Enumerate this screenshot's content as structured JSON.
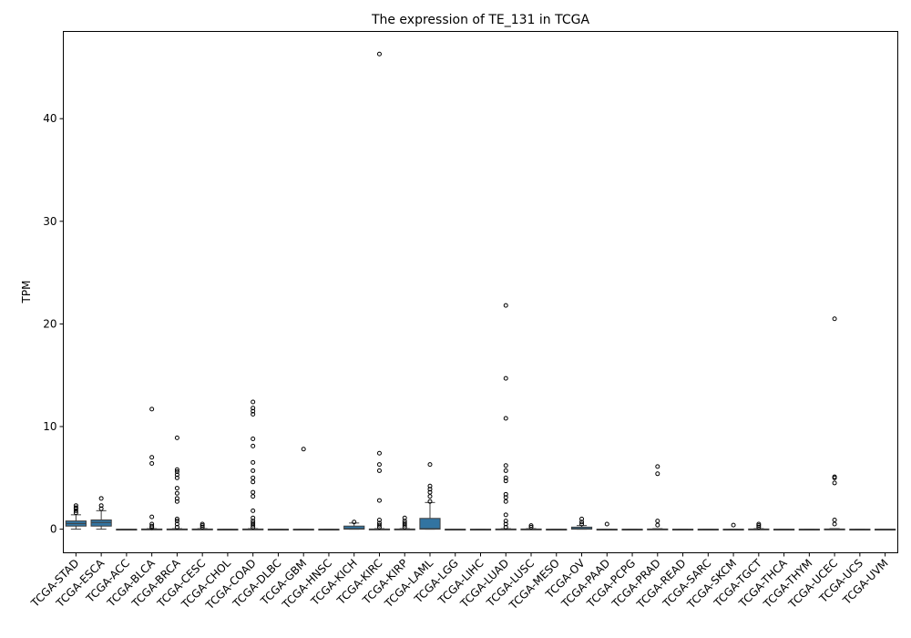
{
  "chart_data": {
    "type": "box",
    "title": "The expression of TE_131 in TCGA",
    "xlabel": "",
    "ylabel": "TPM",
    "ylim": [
      -2.3,
      48.5
    ],
    "yticks": [
      0,
      10,
      20,
      30,
      40
    ],
    "box_color": "#3274a1",
    "grid": false,
    "categories": [
      "TCGA-STAD",
      "TCGA-ESCA",
      "TCGA-ACC",
      "TCGA-BLCA",
      "TCGA-BRCA",
      "TCGA-CESC",
      "TCGA-CHOL",
      "TCGA-COAD",
      "TCGA-DLBC",
      "TCGA-GBM",
      "TCGA-HNSC",
      "TCGA-KICH",
      "TCGA-KIRC",
      "TCGA-KIRP",
      "TCGA-LAML",
      "TCGA-LGG",
      "TCGA-LIHC",
      "TCGA-LUAD",
      "TCGA-LUSC",
      "TCGA-MESO",
      "TCGA-OV",
      "TCGA-PAAD",
      "TCGA-PCPG",
      "TCGA-PRAD",
      "TCGA-READ",
      "TCGA-SARC",
      "TCGA-SKCM",
      "TCGA-TGCT",
      "TCGA-THCA",
      "TCGA-THYM",
      "TCGA-UCEC",
      "TCGA-UCS",
      "TCGA-UVM"
    ],
    "boxes": [
      {
        "whislo": 0,
        "q1": 0.3,
        "med": 0.55,
        "q3": 0.8,
        "whishi": 1.4,
        "fliers": [
          1.6,
          1.8,
          2.0,
          2.1,
          2.3
        ]
      },
      {
        "whislo": 0,
        "q1": 0.3,
        "med": 0.65,
        "q3": 0.9,
        "whishi": 1.8,
        "fliers": [
          2.0,
          2.3,
          3.0
        ]
      },
      {
        "whislo": 0,
        "q1": 0,
        "med": 0,
        "q3": 0,
        "whishi": 0,
        "fliers": []
      },
      {
        "whislo": 0,
        "q1": 0,
        "med": 0,
        "q3": 0.02,
        "whishi": 0.05,
        "fliers": [
          0.15,
          0.3,
          0.5,
          1.2,
          6.4,
          7.0,
          11.7
        ]
      },
      {
        "whislo": 0,
        "q1": 0,
        "med": 0,
        "q3": 0.02,
        "whishi": 0.05,
        "fliers": [
          0.2,
          0.5,
          0.8,
          1.0,
          2.7,
          3.0,
          3.5,
          4.0,
          5.0,
          5.3,
          5.6,
          5.8,
          8.9
        ]
      },
      {
        "whislo": 0,
        "q1": 0,
        "med": 0,
        "q3": 0.02,
        "whishi": 0.05,
        "fliers": [
          0.2,
          0.35,
          0.5
        ]
      },
      {
        "whislo": 0,
        "q1": 0,
        "med": 0,
        "q3": 0,
        "whishi": 0,
        "fliers": []
      },
      {
        "whislo": 0,
        "q1": 0,
        "med": 0,
        "q3": 0.02,
        "whishi": 0.05,
        "fliers": [
          0.2,
          0.4,
          0.6,
          0.8,
          1.1,
          1.8,
          3.2,
          3.6,
          4.6,
          5.0,
          5.7,
          6.5,
          8.1,
          8.8,
          11.2,
          11.5,
          11.8,
          12.4
        ]
      },
      {
        "whislo": 0,
        "q1": 0,
        "med": 0,
        "q3": 0,
        "whishi": 0,
        "fliers": []
      },
      {
        "whislo": 0,
        "q1": 0,
        "med": 0,
        "q3": 0,
        "whishi": 0,
        "fliers": [
          7.8
        ]
      },
      {
        "whislo": 0,
        "q1": 0,
        "med": 0,
        "q3": 0,
        "whishi": 0,
        "fliers": []
      },
      {
        "whislo": 0,
        "q1": 0,
        "med": 0.05,
        "q3": 0.3,
        "whishi": 0.6,
        "fliers": [
          0.7
        ]
      },
      {
        "whislo": 0,
        "q1": 0,
        "med": 0,
        "q3": 0.02,
        "whishi": 0.05,
        "fliers": [
          0.2,
          0.4,
          0.6,
          0.9,
          2.8,
          5.7,
          6.3,
          7.4,
          46.3
        ]
      },
      {
        "whislo": 0,
        "q1": 0,
        "med": 0,
        "q3": 0.02,
        "whishi": 0.05,
        "fliers": [
          0.2,
          0.4,
          0.6,
          0.8,
          1.1
        ]
      },
      {
        "whislo": 0,
        "q1": 0,
        "med": 0.05,
        "q3": 1.05,
        "whishi": 2.6,
        "fliers": [
          2.7,
          3.2,
          3.6,
          3.9,
          4.2,
          6.3
        ]
      },
      {
        "whislo": 0,
        "q1": 0,
        "med": 0,
        "q3": 0,
        "whishi": 0,
        "fliers": []
      },
      {
        "whislo": 0,
        "q1": 0,
        "med": 0,
        "q3": 0,
        "whishi": 0,
        "fliers": []
      },
      {
        "whislo": 0,
        "q1": 0,
        "med": 0,
        "q3": 0.02,
        "whishi": 0.05,
        "fliers": [
          0.2,
          0.5,
          0.8,
          1.4,
          2.7,
          3.1,
          3.4,
          4.7,
          5.0,
          5.7,
          6.2,
          10.8,
          14.7,
          21.8
        ]
      },
      {
        "whislo": 0,
        "q1": 0,
        "med": 0,
        "q3": 0.02,
        "whishi": 0.05,
        "fliers": [
          0.2,
          0.35
        ]
      },
      {
        "whislo": 0,
        "q1": 0,
        "med": 0,
        "q3": 0,
        "whishi": 0,
        "fliers": []
      },
      {
        "whislo": 0,
        "q1": 0,
        "med": 0.05,
        "q3": 0.2,
        "whishi": 0.35,
        "fliers": [
          0.5,
          0.7,
          1.0
        ]
      },
      {
        "whislo": 0,
        "q1": 0,
        "med": 0,
        "q3": 0,
        "whishi": 0,
        "fliers": [
          0.5
        ]
      },
      {
        "whislo": 0,
        "q1": 0,
        "med": 0,
        "q3": 0,
        "whishi": 0,
        "fliers": []
      },
      {
        "whislo": 0,
        "q1": 0,
        "med": 0,
        "q3": 0.02,
        "whishi": 0.05,
        "fliers": [
          0.4,
          0.8,
          5.4,
          6.1
        ]
      },
      {
        "whislo": 0,
        "q1": 0,
        "med": 0,
        "q3": 0,
        "whishi": 0,
        "fliers": []
      },
      {
        "whislo": 0,
        "q1": 0,
        "med": 0,
        "q3": 0,
        "whishi": 0,
        "fliers": []
      },
      {
        "whislo": 0,
        "q1": 0,
        "med": 0,
        "q3": 0,
        "whishi": 0,
        "fliers": [
          0.4
        ]
      },
      {
        "whislo": 0,
        "q1": 0,
        "med": 0,
        "q3": 0.02,
        "whishi": 0.05,
        "fliers": [
          0.2,
          0.35,
          0.5
        ]
      },
      {
        "whislo": 0,
        "q1": 0,
        "med": 0,
        "q3": 0,
        "whishi": 0,
        "fliers": []
      },
      {
        "whislo": 0,
        "q1": 0,
        "med": 0,
        "q3": 0,
        "whishi": 0,
        "fliers": []
      },
      {
        "whislo": 0,
        "q1": 0,
        "med": 0,
        "q3": 0.02,
        "whishi": 0.05,
        "fliers": [
          0.5,
          0.9,
          4.5,
          5.0,
          5.1,
          20.5
        ]
      },
      {
        "whislo": 0,
        "q1": 0,
        "med": 0,
        "q3": 0,
        "whishi": 0,
        "fliers": []
      },
      {
        "whislo": 0,
        "q1": 0,
        "med": 0,
        "q3": 0,
        "whishi": 0,
        "fliers": []
      }
    ]
  }
}
